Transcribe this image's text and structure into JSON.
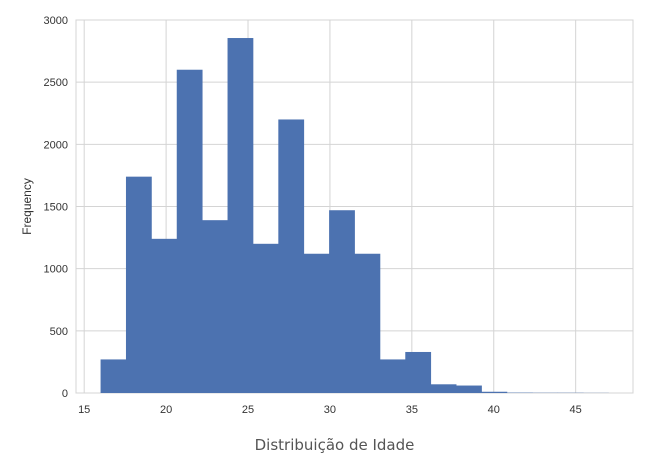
{
  "chart_data": {
    "type": "bar",
    "subtype": "histogram",
    "ylabel": "Frequency",
    "xlim": [
      14.5,
      48.5
    ],
    "ylim": [
      0,
      3000
    ],
    "x_ticks": [
      15,
      20,
      25,
      30,
      35,
      40,
      45
    ],
    "y_ticks": [
      0,
      500,
      1000,
      1500,
      2000,
      2500,
      3000
    ],
    "grid": true,
    "bins": [
      {
        "start": 16.0,
        "end": 17.55,
        "count": 270
      },
      {
        "start": 17.55,
        "end": 19.1,
        "count": 1740
      },
      {
        "start": 19.1,
        "end": 20.65,
        "count": 1240
      },
      {
        "start": 20.65,
        "end": 22.2,
        "count": 2600
      },
      {
        "start": 22.2,
        "end": 23.75,
        "count": 1390
      },
      {
        "start": 23.75,
        "end": 25.3,
        "count": 2855
      },
      {
        "start": 25.3,
        "end": 26.85,
        "count": 1200
      },
      {
        "start": 26.85,
        "end": 28.4,
        "count": 2200
      },
      {
        "start": 28.4,
        "end": 29.95,
        "count": 1120
      },
      {
        "start": 29.95,
        "end": 31.5,
        "count": 1470
      },
      {
        "start": 31.5,
        "end": 33.05,
        "count": 1120
      },
      {
        "start": 33.05,
        "end": 34.6,
        "count": 270
      },
      {
        "start": 34.6,
        "end": 36.15,
        "count": 330
      },
      {
        "start": 36.15,
        "end": 37.7,
        "count": 70
      },
      {
        "start": 37.7,
        "end": 39.25,
        "count": 60
      },
      {
        "start": 39.25,
        "end": 40.8,
        "count": 10
      },
      {
        "start": 40.8,
        "end": 42.35,
        "count": 3
      },
      {
        "start": 42.35,
        "end": 43.9,
        "count": 2
      },
      {
        "start": 43.9,
        "end": 45.45,
        "count": 2
      },
      {
        "start": 45.45,
        "end": 47.0,
        "count": 1
      }
    ],
    "colors": {
      "bar": "#4c72b0",
      "grid": "#d4d4d4",
      "text": "#333333"
    }
  },
  "caption": "Distribuição de Idade"
}
